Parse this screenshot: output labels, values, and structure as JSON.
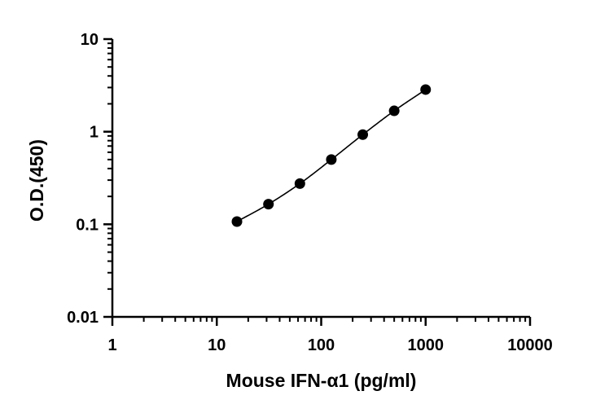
{
  "chart_data": {
    "type": "scatter",
    "title": "",
    "xlabel": "Mouse IFN-α1 (pg/ml)",
    "ylabel": "O.D.(450)",
    "x_scale": "log",
    "y_scale": "log",
    "xlim": [
      1,
      10000
    ],
    "ylim": [
      0.01,
      10
    ],
    "x_ticks": [
      "1",
      "10",
      "100",
      "1000",
      "10000"
    ],
    "y_ticks": [
      "0.01",
      "0.1",
      "1",
      "10"
    ],
    "grid": false,
    "legend": "none",
    "fit_curve": true,
    "series": [
      {
        "x": [
          15.6,
          31.25,
          62.5,
          125,
          250,
          500,
          1000
        ],
        "y": [
          0.107,
          0.165,
          0.275,
          0.5,
          0.93,
          1.68,
          2.85
        ],
        "color": "#000000"
      }
    ]
  }
}
